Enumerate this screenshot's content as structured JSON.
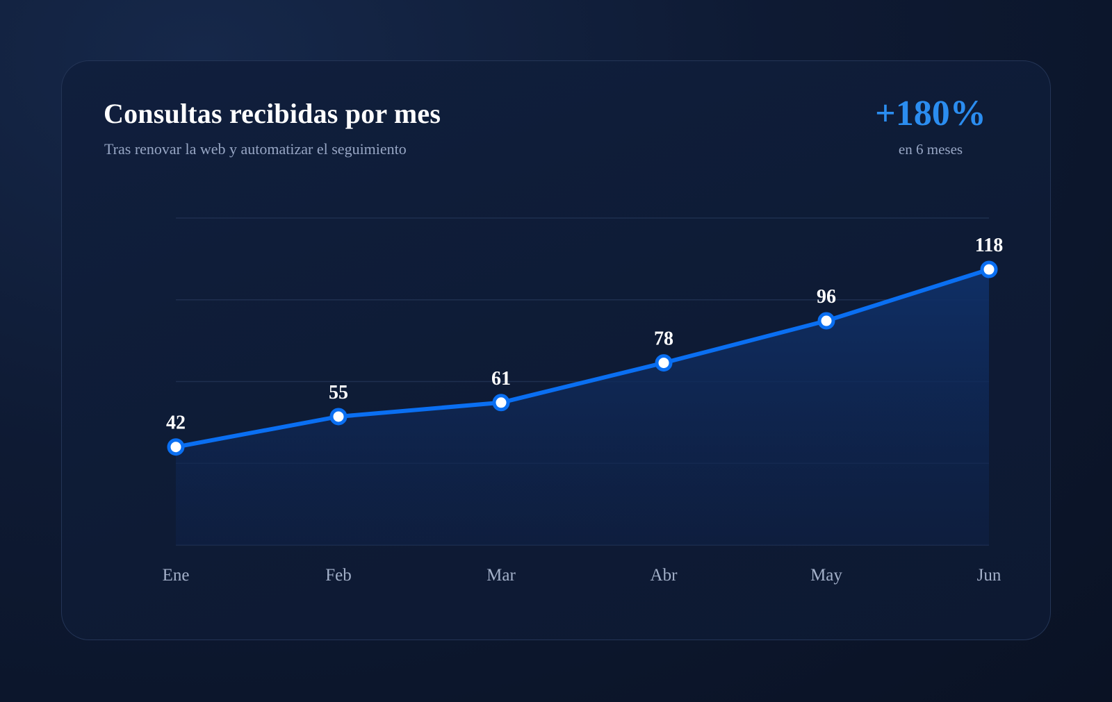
{
  "header": {
    "title": "Consultas recibidas por mes",
    "subtitle": "Tras renovar la web y automatizar el seguimiento"
  },
  "kpi": {
    "value": "+180%",
    "caption": "en 6 meses"
  },
  "colors": {
    "accent": "#0a6ff2",
    "kpi": "#2b8df0",
    "grid": "#1f2f4f",
    "background": "#0e1a33"
  },
  "chart_data": {
    "type": "area",
    "categories": [
      "Ene",
      "Feb",
      "Mar",
      "Abr",
      "May",
      "Jun"
    ],
    "values": [
      42,
      55,
      61,
      78,
      96,
      118
    ],
    "title": "Consultas recibidas por mes",
    "subtitle": "Tras renovar la web y automatizar el seguimiento",
    "xlabel": "",
    "ylabel": "",
    "ylim": [
      0,
      140
    ],
    "grid": true,
    "data_labels": true,
    "legend": "none",
    "markers": true
  }
}
